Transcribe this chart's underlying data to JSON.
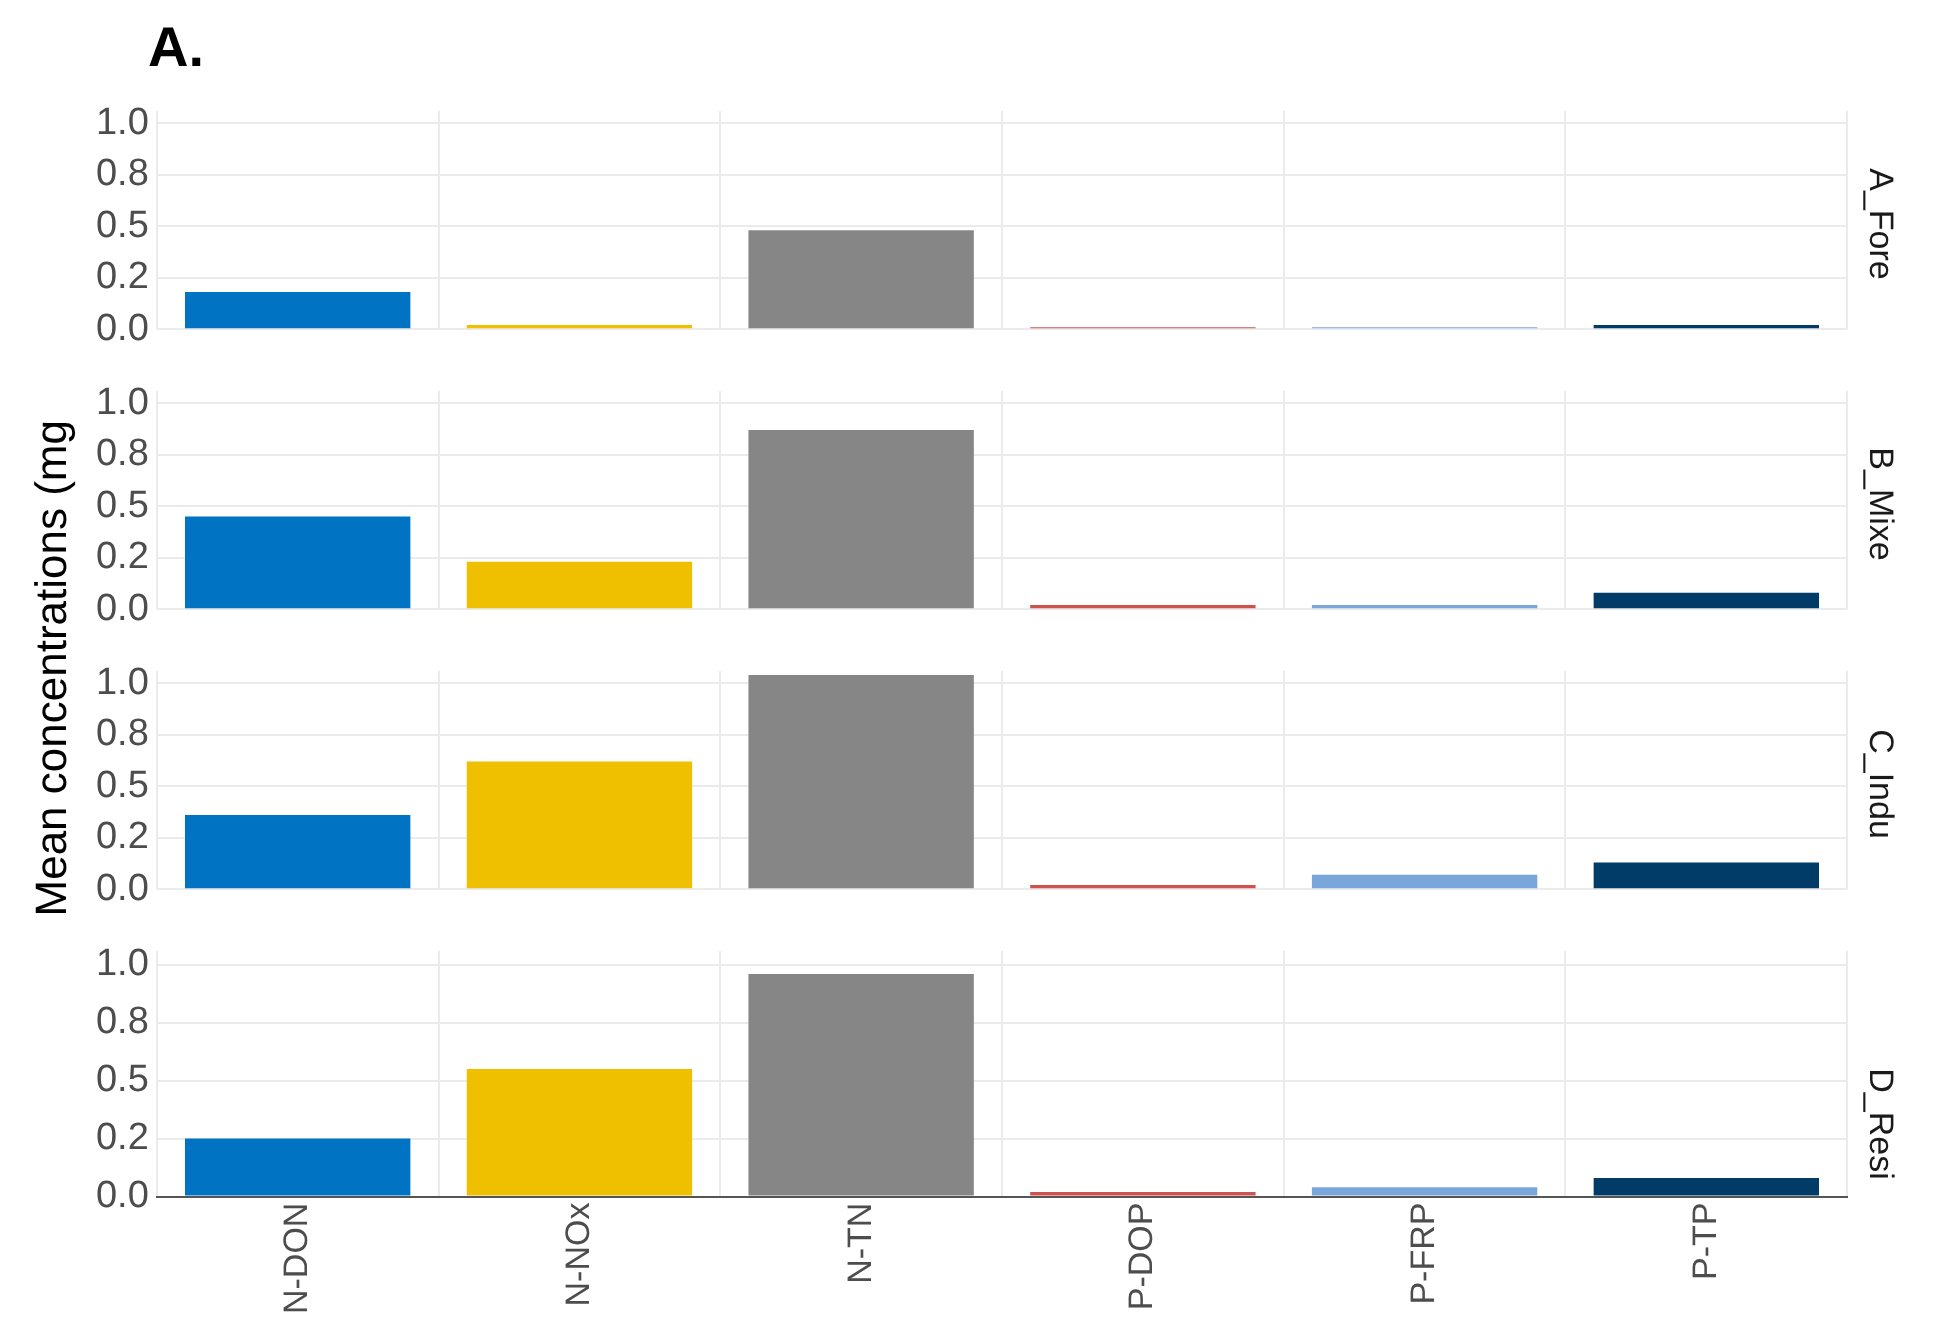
{
  "chart_data": [
    {
      "type": "bar",
      "title": "A.",
      "ylabel": "Mean concentrations (mg",
      "subtitle": "A_Fore",
      "categories": [
        null,
        null,
        null,
        null,
        null,
        null
      ],
      "values": [
        0.18,
        0.02,
        0.48,
        0.01,
        0.01,
        0.02
      ],
      "colors": [
        "#0073c2",
        "#efc000",
        "#868686",
        "#cd534c",
        "#7aa6dc",
        "#003c67"
      ],
      "ylim": [
        0,
        1.06
      ],
      "yticks": [
        {
          "value": 0,
          "label": "0.0"
        },
        {
          "value": 0.25,
          "label": "0.2"
        },
        {
          "value": 0.5,
          "label": "0.5"
        },
        {
          "value": 0.75,
          "label": "0.8"
        },
        {
          "value": 1,
          "label": "1.0"
        }
      ],
      "grid": true,
      "legend": false,
      "tick_labels": "y"
    },
    {
      "type": "bar",
      "subtitle": "B_Mixe",
      "categories": [
        null,
        null,
        null,
        null,
        null,
        null
      ],
      "values": [
        0.45,
        0.23,
        0.87,
        0.02,
        0.02,
        0.08
      ],
      "colors": [
        "#0073c2",
        "#efc000",
        "#868686",
        "#cd534c",
        "#7aa6dc",
        "#003c67"
      ],
      "ylim": [
        0,
        1.06
      ],
      "yticks": [
        {
          "value": 0,
          "label": "0.0"
        },
        {
          "value": 0.25,
          "label": "0.2"
        },
        {
          "value": 0.5,
          "label": "0.5"
        },
        {
          "value": 0.75,
          "label": "0.8"
        },
        {
          "value": 1,
          "label": "1.0"
        }
      ],
      "grid": true,
      "legend": false,
      "tick_labels": "y"
    },
    {
      "type": "bar",
      "subtitle": "C_Indu",
      "categories": [
        null,
        null,
        null,
        null,
        null,
        null
      ],
      "values": [
        0.36,
        0.62,
        1.04,
        0.02,
        0.07,
        0.13
      ],
      "colors": [
        "#0073c2",
        "#efc000",
        "#868686",
        "#cd534c",
        "#7aa6dc",
        "#003c67"
      ],
      "ylim": [
        0,
        1.06
      ],
      "yticks": [
        {
          "value": 0,
          "label": "0.0"
        },
        {
          "value": 0.25,
          "label": "0.2"
        },
        {
          "value": 0.5,
          "label": "0.5"
        },
        {
          "value": 0.75,
          "label": "0.8"
        },
        {
          "value": 1,
          "label": "1.0"
        }
      ],
      "grid": true,
      "legend": false,
      "tick_labels": "y"
    },
    {
      "type": "bar",
      "subtitle": "D_Resi",
      "categories": [
        "N-DON",
        "N-NOx",
        "N-TN",
        "P-DOP",
        "P-FRP",
        "P-TP"
      ],
      "values": [
        0.25,
        0.55,
        0.96,
        0.02,
        0.04,
        0.08
      ],
      "colors": [
        "#0073c2",
        "#efc000",
        "#868686",
        "#cd534c",
        "#7aa6dc",
        "#003c67"
      ],
      "ylim": [
        0,
        1.06
      ],
      "yticks": [
        {
          "value": 0,
          "label": "0.0"
        },
        {
          "value": 0.25,
          "label": "0.2"
        },
        {
          "value": 0.5,
          "label": "0.5"
        },
        {
          "value": 0.75,
          "label": "0.8"
        },
        {
          "value": 1,
          "label": "1.0"
        }
      ],
      "grid": true,
      "legend": false
    }
  ]
}
